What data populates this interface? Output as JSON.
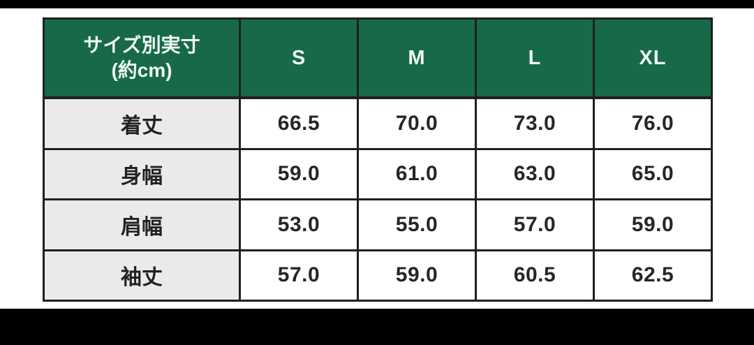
{
  "colors": {
    "page_background": "#ffffff",
    "letterbox": "#000000",
    "header_background": "#186948",
    "header_text": "#eef9f3",
    "label_cell_background": "#eceae9",
    "value_cell_background": "#ffffff",
    "border": "#1f1f1f",
    "value_text": "#262626"
  },
  "table": {
    "header": {
      "title_line1": "サイズ別実寸",
      "title_line2": "(約cm)",
      "columns": [
        "S",
        "M",
        "L",
        "XL"
      ]
    },
    "rows": [
      {
        "label": "着丈",
        "values": [
          "66.5",
          "70.0",
          "73.0",
          "76.0"
        ]
      },
      {
        "label": "身幅",
        "values": [
          "59.0",
          "61.0",
          "63.0",
          "65.0"
        ]
      },
      {
        "label": "肩幅",
        "values": [
          "53.0",
          "55.0",
          "57.0",
          "59.0"
        ]
      },
      {
        "label": "袖丈",
        "values": [
          "57.0",
          "59.0",
          "60.5",
          "62.5"
        ]
      }
    ]
  },
  "chart_data": {
    "type": "table",
    "title": "サイズ別実寸(約cm)",
    "columns": [
      "S",
      "M",
      "L",
      "XL"
    ],
    "row_labels": [
      "着丈",
      "身幅",
      "肩幅",
      "袖丈"
    ],
    "rows": [
      {
        "label": "着丈",
        "values": [
          66.5,
          70.0,
          73.0,
          76.0
        ]
      },
      {
        "label": "身幅",
        "values": [
          59.0,
          61.0,
          63.0,
          65.0
        ]
      },
      {
        "label": "肩幅",
        "values": [
          53.0,
          55.0,
          57.0,
          59.0
        ]
      },
      {
        "label": "袖丈",
        "values": [
          57.0,
          59.0,
          60.5,
          62.5
        ]
      }
    ],
    "units": "cm"
  }
}
